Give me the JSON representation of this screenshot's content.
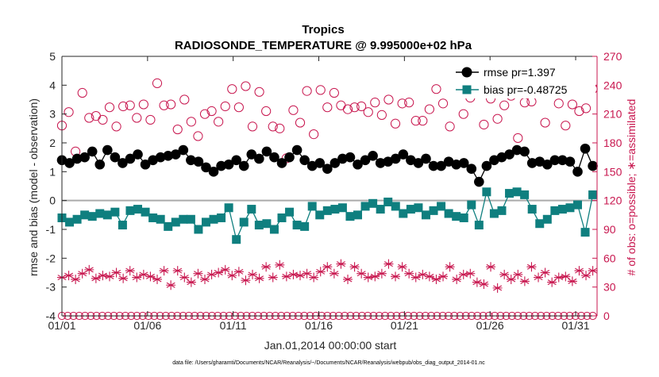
{
  "chart_data": {
    "type": "line",
    "title": "Tropics",
    "subtitle": "RADIOSONDE_TEMPERATURE @ 9.995000e+02 hPa",
    "xlabel": "Jan.01,2014 00:00:00 start",
    "ylabel": "rmse and bias (model - observation)",
    "y2label": "# of obs: o=possible; ∗=assimilated",
    "footer": "data file: /Users/gharamti/Documents/NCAR/Reanalysis/~/Documents/NCAR/Reanalysis/webpub/obs_diag_output_2014-01.nc",
    "xlim": [
      0,
      31.25
    ],
    "ylim": [
      -4,
      5
    ],
    "y2lim": [
      0,
      270
    ],
    "yticks": [
      "-4",
      "-3",
      "-2",
      "-1",
      "0",
      "1",
      "2",
      "3",
      "4",
      "5"
    ],
    "y2ticks": [
      "0",
      "30",
      "60",
      "90",
      "120",
      "150",
      "180",
      "210",
      "240",
      "270"
    ],
    "xticks": [
      {
        "day": 0,
        "label": "01/01"
      },
      {
        "day": 5,
        "label": "01/06"
      },
      {
        "day": 10,
        "label": "01/11"
      },
      {
        "day": 15,
        "label": "01/16"
      },
      {
        "day": 20,
        "label": "01/21"
      },
      {
        "day": 25,
        "label": "01/26"
      },
      {
        "day": 30,
        "label": "01/31"
      }
    ],
    "legend": {
      "position": "top-right",
      "entries": [
        "rmse pr=1.397",
        "bias pr=-0.48725"
      ]
    },
    "colors": {
      "rmse": "#000000",
      "bias": "#0f7f7f",
      "counts": "#c8174f",
      "zero_line": "#aaaaaa"
    },
    "series": [
      {
        "name": "rmse",
        "axis": "left",
        "marker": "circle",
        "values": [
          1.4,
          1.3,
          1.45,
          1.5,
          1.7,
          1.25,
          1.75,
          1.5,
          1.3,
          1.45,
          1.6,
          1.25,
          1.4,
          1.5,
          1.55,
          1.6,
          1.75,
          1.4,
          1.35,
          1.15,
          1.0,
          1.2,
          1.25,
          1.4,
          1.2,
          1.6,
          1.45,
          1.7,
          1.5,
          1.3,
          1.5,
          1.75,
          1.4,
          1.2,
          1.3,
          1.1,
          1.3,
          1.45,
          1.5,
          1.25,
          1.4,
          1.55,
          1.3,
          1.35,
          1.45,
          1.6,
          1.4,
          1.3,
          1.45,
          1.2,
          1.2,
          1.35,
          1.25,
          1.3,
          1.1,
          0.65,
          1.2,
          1.4,
          1.5,
          1.6,
          1.75,
          1.7,
          1.3,
          1.35,
          1.25,
          1.4,
          1.4,
          1.35,
          1.0,
          1.8,
          1.2
        ]
      },
      {
        "name": "bias",
        "axis": "left",
        "marker": "square",
        "values": [
          -0.6,
          -0.75,
          -0.65,
          -0.5,
          -0.55,
          -0.45,
          -0.5,
          -0.4,
          -0.85,
          -0.35,
          -0.3,
          -0.4,
          -0.6,
          -0.65,
          -0.9,
          -0.75,
          -0.65,
          -0.65,
          -1.0,
          -0.75,
          -0.65,
          -0.6,
          -0.25,
          -1.35,
          -0.75,
          -0.3,
          -0.85,
          -0.8,
          -1.0,
          -0.6,
          -0.4,
          -0.85,
          -0.9,
          -0.2,
          -0.5,
          -0.35,
          -0.3,
          -0.25,
          -0.55,
          -0.5,
          -0.2,
          -0.1,
          -0.3,
          -0.05,
          -0.2,
          -0.45,
          -0.3,
          -0.25,
          -0.5,
          -0.35,
          -0.2,
          -0.45,
          -0.55,
          -0.6,
          -0.15,
          -0.85,
          0.3,
          -0.45,
          -0.35,
          0.25,
          0.3,
          0.2,
          -0.3,
          -0.8,
          -0.65,
          -0.35,
          -0.3,
          -0.25,
          -0.15,
          -1.1,
          0.2
        ]
      },
      {
        "name": "possible",
        "axis": "right",
        "marker": "open-circle",
        "values": [
          198,
          212,
          171,
          232,
          206,
          208,
          204,
          217,
          197,
          218,
          219,
          206,
          220,
          204,
          242,
          219,
          220,
          194,
          225,
          202,
          187,
          210,
          213,
          202,
          218,
          236,
          217,
          239,
          197,
          233,
          213,
          197,
          195,
          164,
          214,
          201,
          234,
          189,
          235,
          217,
          232,
          219,
          215,
          217,
          218,
          212,
          222,
          209,
          225,
          200,
          221,
          222,
          203,
          203,
          215,
          236,
          221,
          197,
          237,
          210,
          227,
          240,
          199,
          226,
          205,
          219,
          229,
          185,
          222,
          223,
          237,
          201,
          235,
          221,
          198,
          220,
          213,
          216,
          236
        ]
      },
      {
        "name": "assimilated",
        "axis": "right",
        "marker": "asterisk",
        "values": [
          40,
          42,
          38,
          44,
          48,
          39,
          42,
          41,
          45,
          39,
          47,
          40,
          43,
          41,
          38,
          47,
          32,
          47,
          40,
          35,
          44,
          38,
          43,
          45,
          48,
          42,
          46,
          37,
          43,
          39,
          51,
          40,
          53,
          41,
          43,
          42,
          44,
          40,
          46,
          51,
          44,
          54,
          38,
          51,
          44,
          40,
          41,
          44,
          54,
          41,
          51,
          44,
          40,
          43,
          41,
          38,
          41,
          51,
          38,
          43,
          44,
          35,
          33,
          51,
          29,
          43,
          38,
          43,
          36,
          51,
          40,
          45,
          35,
          40,
          41,
          36,
          47,
          42,
          47
        ]
      },
      {
        "name": "possible_baseline",
        "axis": "right",
        "marker": "open-circle",
        "values": [
          0
        ]
      }
    ]
  }
}
